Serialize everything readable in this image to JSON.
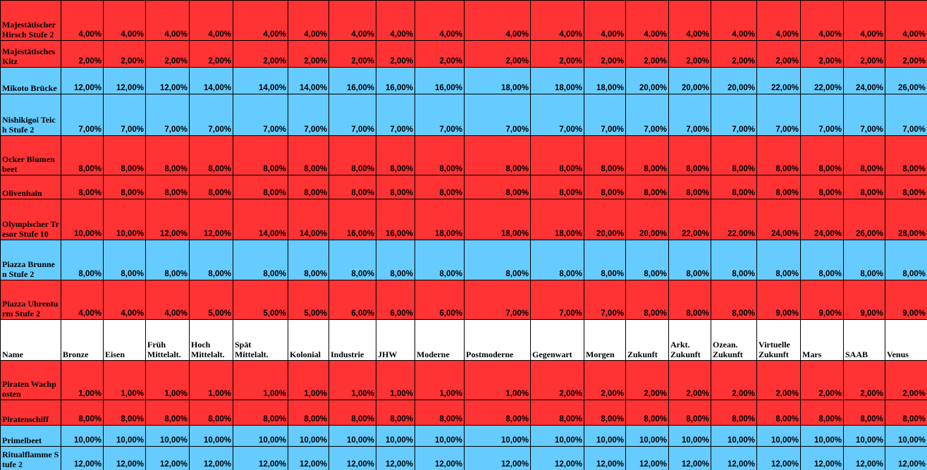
{
  "table": {
    "header": [
      "Name",
      "Bronze",
      "Eisen",
      "Früh Mittelalt.",
      "Hoch Mittelalt.",
      "Spät Mittelalt.",
      "Kolonial",
      "Industrie",
      "JHW",
      "Moderne",
      "Postmoderne",
      "Gegenwart",
      "Morgen",
      "Zukunft",
      "Arkt. Zukunft",
      "Ozean. Zukunft",
      "Virtuelle Zukunft",
      "Mars",
      "SAAB",
      "Venus"
    ],
    "header_position": 9,
    "rows": [
      {
        "name": "Majestätischer Hirsch Stufe 2",
        "color": "#ff3333",
        "values": [
          "4,00%",
          "4,00%",
          "4,00%",
          "4,00%",
          "4,00%",
          "4,00%",
          "4,00%",
          "4,00%",
          "4,00%",
          "4,00%",
          "4,00%",
          "4,00%",
          "4,00%",
          "4,00%",
          "4,00%",
          "4,00%",
          "4,00%",
          "4,00%",
          "4,00%"
        ]
      },
      {
        "name": "Majestätisches Kitz",
        "color": "#ff3333",
        "values": [
          "2,00%",
          "2,00%",
          "2,00%",
          "2,00%",
          "2,00%",
          "2,00%",
          "2,00%",
          "2,00%",
          "2,00%",
          "2,00%",
          "2,00%",
          "2,00%",
          "2,00%",
          "2,00%",
          "2,00%",
          "2,00%",
          "2,00%",
          "2,00%",
          "2,00%"
        ]
      },
      {
        "name": "Mikoto Brücke",
        "color": "#66ccff",
        "values": [
          "12,00%",
          "12,00%",
          "12,00%",
          "14,00%",
          "14,00%",
          "14,00%",
          "16,00%",
          "16,00%",
          "16,00%",
          "18,00%",
          "18,00%",
          "18,00%",
          "20,00%",
          "20,00%",
          "20,00%",
          "22,00%",
          "22,00%",
          "24,00%",
          "26,00%"
        ]
      },
      {
        "name": "Nishikigoi Teich Stufe 2",
        "color": "#66ccff",
        "values": [
          "7,00%",
          "7,00%",
          "7,00%",
          "7,00%",
          "7,00%",
          "7,00%",
          "7,00%",
          "7,00%",
          "7,00%",
          "7,00%",
          "7,00%",
          "7,00%",
          "7,00%",
          "7,00%",
          "7,00%",
          "7,00%",
          "7,00%",
          "7,00%",
          "7,00%"
        ]
      },
      {
        "name": "Ocker Blumenbeet",
        "color": "#ff3333",
        "values": [
          "8,00%",
          "8,00%",
          "8,00%",
          "8,00%",
          "8,00%",
          "8,00%",
          "8,00%",
          "8,00%",
          "8,00%",
          "8,00%",
          "8,00%",
          "8,00%",
          "8,00%",
          "8,00%",
          "8,00%",
          "8,00%",
          "8,00%",
          "8,00%",
          "8,00%"
        ]
      },
      {
        "name": "Olivenhain",
        "color": "#ff3333",
        "values": [
          "8,00%",
          "8,00%",
          "8,00%",
          "8,00%",
          "8,00%",
          "8,00%",
          "8,00%",
          "8,00%",
          "8,00%",
          "8,00%",
          "8,00%",
          "8,00%",
          "8,00%",
          "8,00%",
          "8,00%",
          "8,00%",
          "8,00%",
          "8,00%",
          "8,00%"
        ]
      },
      {
        "name": "Olympischer Tresor Stufe 10",
        "color": "#ff3333",
        "values": [
          "10,00%",
          "10,00%",
          "12,00%",
          "12,00%",
          "14,00%",
          "14,00%",
          "16,00%",
          "16,00%",
          "18,00%",
          "18,00%",
          "18,00%",
          "20,00%",
          "20,00%",
          "22,00%",
          "22,00%",
          "24,00%",
          "24,00%",
          "26,00%",
          "28,00%"
        ]
      },
      {
        "name": "Piazza Brunnen Stufe 2",
        "color": "#66ccff",
        "values": [
          "8,00%",
          "8,00%",
          "8,00%",
          "8,00%",
          "8,00%",
          "8,00%",
          "8,00%",
          "8,00%",
          "8,00%",
          "8,00%",
          "8,00%",
          "8,00%",
          "8,00%",
          "8,00%",
          "8,00%",
          "8,00%",
          "8,00%",
          "8,00%",
          "8,00%"
        ]
      },
      {
        "name": "Piazza Uhrenturm Stufe 2",
        "color": "#ff3333",
        "values": [
          "4,00%",
          "4,00%",
          "4,00%",
          "5,00%",
          "5,00%",
          "5,00%",
          "6,00%",
          "6,00%",
          "6,00%",
          "7,00%",
          "7,00%",
          "7,00%",
          "8,00%",
          "8,00%",
          "8,00%",
          "9,00%",
          "9,00%",
          "9,00%",
          "9,00%"
        ]
      },
      {
        "name": "Piraten Wachposten",
        "color": "#ff3333",
        "values": [
          "1,00%",
          "1,00%",
          "1,00%",
          "1,00%",
          "1,00%",
          "1,00%",
          "1,00%",
          "1,00%",
          "1,00%",
          "1,00%",
          "2,00%",
          "2,00%",
          "2,00%",
          "2,00%",
          "2,00%",
          "2,00%",
          "2,00%",
          "2,00%",
          "2,00%"
        ]
      },
      {
        "name": "Piratenschiff",
        "color": "#ff3333",
        "values": [
          "8,00%",
          "8,00%",
          "8,00%",
          "8,00%",
          "8,00%",
          "8,00%",
          "8,00%",
          "8,00%",
          "8,00%",
          "8,00%",
          "8,00%",
          "8,00%",
          "8,00%",
          "8,00%",
          "8,00%",
          "8,00%",
          "8,00%",
          "8,00%",
          "8,00%"
        ]
      },
      {
        "name": "Primelbeet",
        "color": "#66ccff",
        "values": [
          "10,00%",
          "10,00%",
          "10,00%",
          "10,00%",
          "10,00%",
          "10,00%",
          "10,00%",
          "10,00%",
          "10,00%",
          "10,00%",
          "10,00%",
          "10,00%",
          "10,00%",
          "10,00%",
          "10,00%",
          "10,00%",
          "10,00%",
          "10,00%",
          "10,00%"
        ]
      },
      {
        "name": "Ritualflamme Stufe 2",
        "color": "#66ccff",
        "values": [
          "12,00%",
          "12,00%",
          "12,00%",
          "12,00%",
          "12,00%",
          "12,00%",
          "12,00%",
          "12,00%",
          "12,00%",
          "12,00%",
          "12,00%",
          "12,00%",
          "12,00%",
          "12,00%",
          "12,00%",
          "12,00%",
          "12,00%",
          "12,00%",
          "12,00%"
        ]
      }
    ]
  }
}
